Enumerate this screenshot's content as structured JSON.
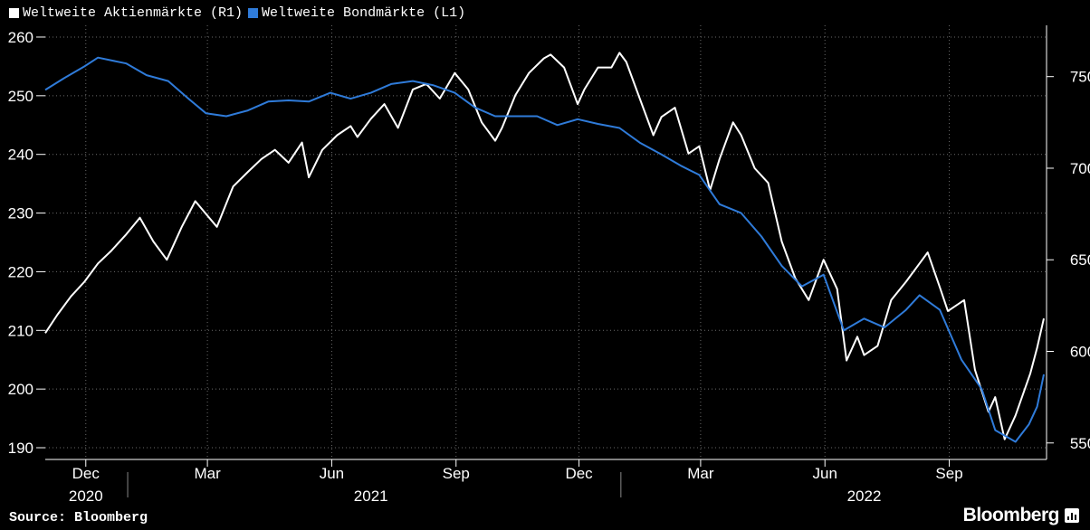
{
  "legend": [
    {
      "label": "Weltweite Aktienmärkte (R1)",
      "color": "#ffffff"
    },
    {
      "label": "Weltweite Bondmärkte (L1)",
      "color": "#2f7bd9"
    }
  ],
  "footer": {
    "source": "Source: Bloomberg",
    "brand": "Bloomberg"
  },
  "chart_data": {
    "type": "line",
    "x_range": [
      "2020-11-01",
      "2022-11-12"
    ],
    "x_ticks": [
      {
        "date": "2020-12-01",
        "label": "Dec"
      },
      {
        "date": "2021-03-01",
        "label": "Mar"
      },
      {
        "date": "2021-06-01",
        "label": "Jun"
      },
      {
        "date": "2021-09-01",
        "label": "Sep"
      },
      {
        "date": "2021-12-01",
        "label": "Dec"
      },
      {
        "date": "2022-03-01",
        "label": "Mar"
      },
      {
        "date": "2022-06-01",
        "label": "Jun"
      },
      {
        "date": "2022-09-01",
        "label": "Sep"
      }
    ],
    "year_labels": [
      {
        "label": "2020",
        "center": "2020-12-01"
      },
      {
        "label": "2021",
        "center": "2021-06-30"
      },
      {
        "label": "2022",
        "center": "2022-06-30"
      }
    ],
    "left_axis": {
      "ylim": [
        188,
        262
      ],
      "ticks": [
        190,
        200,
        210,
        220,
        230,
        240,
        250,
        260
      ]
    },
    "right_axis": {
      "ylim": [
        541,
        778
      ],
      "ticks": [
        550,
        600,
        650,
        700,
        750
      ]
    },
    "grid": true,
    "legend_position": "top-left",
    "series": [
      {
        "name": "Weltweite Aktienmärkte (R1)",
        "axis": "right",
        "color": "#ffffff",
        "points": [
          [
            "2020-11-01",
            610
          ],
          [
            "2020-11-10",
            620
          ],
          [
            "2020-11-20",
            630
          ],
          [
            "2020-11-30",
            638
          ],
          [
            "2020-12-10",
            648
          ],
          [
            "2020-12-20",
            655
          ],
          [
            "2020-12-31",
            664
          ],
          [
            "2021-01-10",
            673
          ],
          [
            "2021-01-20",
            660
          ],
          [
            "2021-01-30",
            650
          ],
          [
            "2021-02-10",
            668
          ],
          [
            "2021-02-20",
            682
          ],
          [
            "2021-02-28",
            675
          ],
          [
            "2021-03-08",
            668
          ],
          [
            "2021-03-20",
            690
          ],
          [
            "2021-03-31",
            698
          ],
          [
            "2021-04-10",
            705
          ],
          [
            "2021-04-20",
            710
          ],
          [
            "2021-04-30",
            703
          ],
          [
            "2021-05-10",
            714
          ],
          [
            "2021-05-15",
            695
          ],
          [
            "2021-05-25",
            710
          ],
          [
            "2021-06-05",
            718
          ],
          [
            "2021-06-15",
            723
          ],
          [
            "2021-06-20",
            717
          ],
          [
            "2021-06-30",
            727
          ],
          [
            "2021-07-10",
            735
          ],
          [
            "2021-07-20",
            722
          ],
          [
            "2021-07-31",
            743
          ],
          [
            "2021-08-10",
            746
          ],
          [
            "2021-08-20",
            738
          ],
          [
            "2021-08-31",
            752
          ],
          [
            "2021-09-10",
            743
          ],
          [
            "2021-09-20",
            725
          ],
          [
            "2021-09-30",
            715
          ],
          [
            "2021-10-05",
            722
          ],
          [
            "2021-10-15",
            740
          ],
          [
            "2021-10-25",
            752
          ],
          [
            "2021-11-05",
            760
          ],
          [
            "2021-11-10",
            762
          ],
          [
            "2021-11-20",
            755
          ],
          [
            "2021-11-30",
            735
          ],
          [
            "2021-12-05",
            743
          ],
          [
            "2021-12-15",
            755
          ],
          [
            "2021-12-25",
            755
          ],
          [
            "2021-12-31",
            763
          ],
          [
            "2022-01-05",
            758
          ],
          [
            "2022-01-15",
            738
          ],
          [
            "2022-01-25",
            718
          ],
          [
            "2022-01-31",
            728
          ],
          [
            "2022-02-10",
            733
          ],
          [
            "2022-02-20",
            708
          ],
          [
            "2022-02-28",
            712
          ],
          [
            "2022-03-08",
            688
          ],
          [
            "2022-03-15",
            705
          ],
          [
            "2022-03-25",
            725
          ],
          [
            "2022-03-31",
            718
          ],
          [
            "2022-04-10",
            700
          ],
          [
            "2022-04-20",
            692
          ],
          [
            "2022-04-30",
            660
          ],
          [
            "2022-05-10",
            640
          ],
          [
            "2022-05-20",
            628
          ],
          [
            "2022-05-31",
            650
          ],
          [
            "2022-06-10",
            634
          ],
          [
            "2022-06-17",
            595
          ],
          [
            "2022-06-25",
            608
          ],
          [
            "2022-06-30",
            598
          ],
          [
            "2022-07-10",
            603
          ],
          [
            "2022-07-20",
            628
          ],
          [
            "2022-07-31",
            638
          ],
          [
            "2022-08-10",
            648
          ],
          [
            "2022-08-16",
            654
          ],
          [
            "2022-08-25",
            635
          ],
          [
            "2022-08-31",
            622
          ],
          [
            "2022-09-12",
            628
          ],
          [
            "2022-09-20",
            590
          ],
          [
            "2022-09-30",
            567
          ],
          [
            "2022-10-05",
            575
          ],
          [
            "2022-10-12",
            552
          ],
          [
            "2022-10-20",
            565
          ],
          [
            "2022-10-31",
            588
          ],
          [
            "2022-11-05",
            602
          ],
          [
            "2022-11-10",
            618
          ]
        ]
      },
      {
        "name": "Weltweite Bondmärkte (L1)",
        "axis": "left",
        "color": "#2f7bd9",
        "points": [
          [
            "2020-11-01",
            251
          ],
          [
            "2020-11-15",
            253
          ],
          [
            "2020-11-30",
            255
          ],
          [
            "2020-12-10",
            256.5
          ],
          [
            "2020-12-31",
            255.5
          ],
          [
            "2021-01-15",
            253.5
          ],
          [
            "2021-01-31",
            252.5
          ],
          [
            "2021-02-15",
            249.5
          ],
          [
            "2021-02-28",
            247
          ],
          [
            "2021-03-15",
            246.5
          ],
          [
            "2021-03-31",
            247.5
          ],
          [
            "2021-04-15",
            249
          ],
          [
            "2021-04-30",
            249.2
          ],
          [
            "2021-05-15",
            249
          ],
          [
            "2021-05-31",
            250.5
          ],
          [
            "2021-06-15",
            249.5
          ],
          [
            "2021-06-30",
            250.5
          ],
          [
            "2021-07-15",
            252
          ],
          [
            "2021-07-31",
            252.5
          ],
          [
            "2021-08-15",
            251.8
          ],
          [
            "2021-08-31",
            250.5
          ],
          [
            "2021-09-15",
            248
          ],
          [
            "2021-09-30",
            246.5
          ],
          [
            "2021-10-15",
            246.5
          ],
          [
            "2021-10-31",
            246.5
          ],
          [
            "2021-11-15",
            245
          ],
          [
            "2021-11-30",
            246
          ],
          [
            "2021-12-15",
            245.2
          ],
          [
            "2021-12-31",
            244.5
          ],
          [
            "2022-01-15",
            242
          ],
          [
            "2022-01-31",
            240
          ],
          [
            "2022-02-15",
            238
          ],
          [
            "2022-02-28",
            236.5
          ],
          [
            "2022-03-15",
            231.5
          ],
          [
            "2022-03-31",
            230
          ],
          [
            "2022-04-15",
            226
          ],
          [
            "2022-04-30",
            221
          ],
          [
            "2022-05-15",
            217.5
          ],
          [
            "2022-05-31",
            219.5
          ],
          [
            "2022-06-15",
            210
          ],
          [
            "2022-06-30",
            212
          ],
          [
            "2022-07-15",
            210.5
          ],
          [
            "2022-07-31",
            213.5
          ],
          [
            "2022-08-10",
            216
          ],
          [
            "2022-08-25",
            213.5
          ],
          [
            "2022-09-10",
            205
          ],
          [
            "2022-09-25",
            200
          ],
          [
            "2022-10-05",
            193
          ],
          [
            "2022-10-20",
            191
          ],
          [
            "2022-10-30",
            194
          ],
          [
            "2022-11-05",
            197
          ],
          [
            "2022-11-10",
            202.5
          ]
        ]
      }
    ]
  }
}
